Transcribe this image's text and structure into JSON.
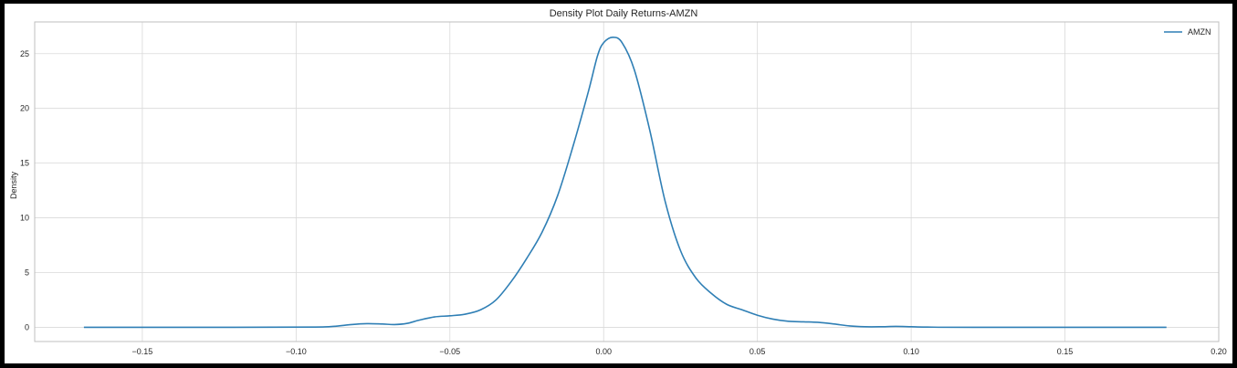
{
  "chart_data": {
    "type": "line",
    "title": "Density Plot Daily Returns-AMZN",
    "xlabel": "",
    "ylabel": "Density",
    "xlim": [
      -0.185,
      0.2
    ],
    "ylim": [
      -1.3,
      27.9
    ],
    "xticks": [
      -0.15,
      -0.1,
      -0.05,
      0.0,
      0.05,
      0.1,
      0.15,
      0.2
    ],
    "xtick_labels": [
      "−0.15",
      "−0.10",
      "−0.05",
      "0.00",
      "0.05",
      "0.10",
      "0.15",
      "0.20"
    ],
    "yticks": [
      0,
      5,
      10,
      15,
      20,
      25
    ],
    "ytick_labels": [
      "0",
      "5",
      "10",
      "15",
      "20",
      "25"
    ],
    "grid": true,
    "legend_position": "top-right",
    "series": [
      {
        "name": "AMZN",
        "color": "#2f7fb5",
        "points": [
          [
            -0.169,
            0.0
          ],
          [
            -0.12,
            0.0
          ],
          [
            -0.095,
            0.02
          ],
          [
            -0.088,
            0.08
          ],
          [
            -0.082,
            0.25
          ],
          [
            -0.077,
            0.33
          ],
          [
            -0.072,
            0.3
          ],
          [
            -0.068,
            0.25
          ],
          [
            -0.064,
            0.35
          ],
          [
            -0.06,
            0.65
          ],
          [
            -0.055,
            0.95
          ],
          [
            -0.05,
            1.05
          ],
          [
            -0.045,
            1.2
          ],
          [
            -0.04,
            1.6
          ],
          [
            -0.035,
            2.5
          ],
          [
            -0.03,
            4.2
          ],
          [
            -0.025,
            6.3
          ],
          [
            -0.02,
            8.7
          ],
          [
            -0.015,
            12.0
          ],
          [
            -0.01,
            16.5
          ],
          [
            -0.005,
            21.5
          ],
          [
            -0.002,
            24.8
          ],
          [
            0.0,
            26.0
          ],
          [
            0.003,
            26.5
          ],
          [
            0.006,
            26.0
          ],
          [
            0.01,
            23.5
          ],
          [
            0.015,
            18.0
          ],
          [
            0.02,
            11.5
          ],
          [
            0.025,
            7.0
          ],
          [
            0.03,
            4.5
          ],
          [
            0.035,
            3.1
          ],
          [
            0.04,
            2.1
          ],
          [
            0.045,
            1.6
          ],
          [
            0.05,
            1.1
          ],
          [
            0.055,
            0.75
          ],
          [
            0.06,
            0.55
          ],
          [
            0.065,
            0.5
          ],
          [
            0.07,
            0.45
          ],
          [
            0.075,
            0.3
          ],
          [
            0.08,
            0.12
          ],
          [
            0.085,
            0.05
          ],
          [
            0.09,
            0.05
          ],
          [
            0.095,
            0.08
          ],
          [
            0.1,
            0.05
          ],
          [
            0.105,
            0.02
          ],
          [
            0.12,
            0.0
          ],
          [
            0.183,
            0.0
          ]
        ]
      }
    ]
  }
}
